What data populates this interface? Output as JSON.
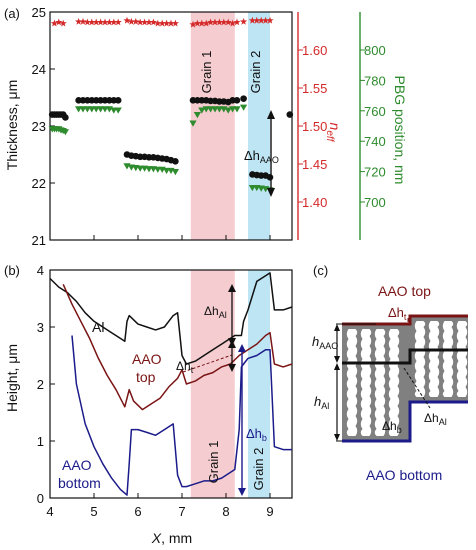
{
  "panels": {
    "a": "(a)",
    "b": "(b)",
    "c": "(c)"
  },
  "colors": {
    "black": "#111111",
    "red": "#d42a2a",
    "green": "#2e8b2e",
    "dark_red": "#7a1414",
    "blue": "#1b1b8a",
    "grain1_band": "#f2bcc0",
    "grain2_band": "#a8dcf0",
    "schematic_gray": "#808080",
    "axis_red": "#d42a2a",
    "axis_green": "#2e8b2e"
  },
  "chart_data": [
    {
      "id": "a",
      "type": "scatter",
      "xlim": [
        4,
        9.5
      ],
      "x_ticks": [
        4,
        5,
        6,
        7,
        8,
        9
      ],
      "shaded_regions": [
        {
          "label": "Grain 1",
          "x": [
            7.2,
            8.2
          ]
        },
        {
          "label": "Grain 2",
          "x": [
            8.5,
            9.0
          ]
        }
      ],
      "axes": {
        "left": {
          "label": "Thickness, μm",
          "lim": [
            21,
            25
          ],
          "ticks": [
            21,
            22,
            23,
            24,
            25
          ]
        },
        "right1": {
          "label_main": "n",
          "label_sub": "eff",
          "lim": [
            1.35,
            1.65
          ],
          "ticks": [
            1.4,
            1.45,
            1.5,
            1.55,
            1.6
          ]
        },
        "right2": {
          "label": "PBG position, nm",
          "lim": [
            675,
            825
          ],
          "ticks": [
            700,
            720,
            740,
            760,
            780,
            800
          ]
        }
      },
      "series": [
        {
          "marker": "circle",
          "color": "#111111",
          "axis": "left",
          "points": [
            [
              4.05,
              23.2
            ],
            [
              4.1,
              23.2
            ],
            [
              4.15,
              23.2
            ],
            [
              4.2,
              23.2
            ],
            [
              4.25,
              23.2
            ],
            [
              4.3,
              23.2
            ],
            [
              4.35,
              23.15
            ],
            [
              4.65,
              23.45
            ],
            [
              4.75,
              23.45
            ],
            [
              4.85,
              23.45
            ],
            [
              4.95,
              23.45
            ],
            [
              5.05,
              23.45
            ],
            [
              5.15,
              23.45
            ],
            [
              5.25,
              23.45
            ],
            [
              5.35,
              23.45
            ],
            [
              5.45,
              23.45
            ],
            [
              5.55,
              23.45
            ],
            [
              5.75,
              22.5
            ],
            [
              5.85,
              22.48
            ],
            [
              5.95,
              22.47
            ],
            [
              6.05,
              22.46
            ],
            [
              6.15,
              22.46
            ],
            [
              6.25,
              22.45
            ],
            [
              6.35,
              22.45
            ],
            [
              6.45,
              22.44
            ],
            [
              6.55,
              22.43
            ],
            [
              6.65,
              22.42
            ],
            [
              6.75,
              22.4
            ],
            [
              6.85,
              22.38
            ],
            [
              7.25,
              23.45
            ],
            [
              7.35,
              23.45
            ],
            [
              7.45,
              23.45
            ],
            [
              7.55,
              23.45
            ],
            [
              7.65,
              23.44
            ],
            [
              7.75,
              23.44
            ],
            [
              7.85,
              23.43
            ],
            [
              7.95,
              23.43
            ],
            [
              8.05,
              23.42
            ],
            [
              8.15,
              23.45
            ],
            [
              8.25,
              23.45
            ],
            [
              8.4,
              23.48
            ],
            [
              8.6,
              22.15
            ],
            [
              8.7,
              22.14
            ],
            [
              8.8,
              22.13
            ],
            [
              8.9,
              22.13
            ],
            [
              9.0,
              22.1
            ],
            [
              9.45,
              23.2
            ]
          ]
        },
        {
          "marker": "triangle-down",
          "color": "#2e8b2e",
          "axis": "left",
          "points": [
            [
              4.05,
              22.95
            ],
            [
              4.1,
              22.95
            ],
            [
              4.15,
              22.95
            ],
            [
              4.2,
              22.95
            ],
            [
              4.25,
              22.93
            ],
            [
              4.3,
              22.92
            ],
            [
              4.35,
              22.9
            ],
            [
              4.65,
              23.3
            ],
            [
              4.75,
              23.3
            ],
            [
              4.85,
              23.3
            ],
            [
              4.95,
              23.3
            ],
            [
              5.05,
              23.3
            ],
            [
              5.15,
              23.3
            ],
            [
              5.25,
              23.3
            ],
            [
              5.35,
              23.3
            ],
            [
              5.45,
              23.28
            ],
            [
              5.55,
              23.28
            ],
            [
              5.75,
              22.3
            ],
            [
              5.85,
              22.28
            ],
            [
              5.95,
              22.27
            ],
            [
              6.05,
              22.26
            ],
            [
              6.15,
              22.26
            ],
            [
              6.25,
              22.25
            ],
            [
              6.35,
              22.25
            ],
            [
              6.45,
              22.24
            ],
            [
              6.55,
              22.24
            ],
            [
              6.65,
              22.22
            ],
            [
              6.75,
              22.22
            ],
            [
              6.85,
              22.2
            ],
            [
              7.25,
              23.05
            ],
            [
              7.35,
              23.2
            ],
            [
              7.45,
              23.28
            ],
            [
              7.55,
              23.3
            ],
            [
              7.65,
              23.3
            ],
            [
              7.75,
              23.3
            ],
            [
              7.85,
              23.3
            ],
            [
              7.95,
              23.3
            ],
            [
              8.05,
              23.28
            ],
            [
              8.15,
              23.3
            ],
            [
              8.25,
              23.3
            ],
            [
              8.4,
              23.33
            ],
            [
              8.6,
              21.92
            ],
            [
              8.7,
              21.92
            ],
            [
              8.8,
              21.91
            ],
            [
              8.9,
              21.9
            ],
            [
              9.0,
              21.88
            ]
          ]
        },
        {
          "marker": "star",
          "color": "#d42a2a",
          "axis": "left",
          "points": [
            [
              4.1,
              24.8
            ],
            [
              4.2,
              24.82
            ],
            [
              4.3,
              24.8
            ],
            [
              4.65,
              24.83
            ],
            [
              4.75,
              24.83
            ],
            [
              4.85,
              24.82
            ],
            [
              4.95,
              24.82
            ],
            [
              5.05,
              24.82
            ],
            [
              5.15,
              24.82
            ],
            [
              5.25,
              24.82
            ],
            [
              5.35,
              24.82
            ],
            [
              5.45,
              24.82
            ],
            [
              5.55,
              24.82
            ],
            [
              5.75,
              24.85
            ],
            [
              5.85,
              24.83
            ],
            [
              5.95,
              24.83
            ],
            [
              6.05,
              24.82
            ],
            [
              6.15,
              24.82
            ],
            [
              6.25,
              24.82
            ],
            [
              6.35,
              24.82
            ],
            [
              6.45,
              24.8
            ],
            [
              6.55,
              24.8
            ],
            [
              6.65,
              24.8
            ],
            [
              6.75,
              24.8
            ],
            [
              6.85,
              24.8
            ],
            [
              7.25,
              24.78
            ],
            [
              7.35,
              24.8
            ],
            [
              7.45,
              24.8
            ],
            [
              7.55,
              24.8
            ],
            [
              7.65,
              24.82
            ],
            [
              7.75,
              24.82
            ],
            [
              7.85,
              24.82
            ],
            [
              7.95,
              24.82
            ],
            [
              8.05,
              24.82
            ],
            [
              8.15,
              24.8
            ],
            [
              8.25,
              24.82
            ],
            [
              8.4,
              24.83
            ],
            [
              8.6,
              24.85
            ],
            [
              8.7,
              24.85
            ],
            [
              8.8,
              24.85
            ],
            [
              8.9,
              24.85
            ],
            [
              9.0,
              24.85
            ]
          ]
        }
      ],
      "annotations": [
        {
          "text_main": "Δh",
          "text_sub": "AAO",
          "arrow_x": 8.38,
          "arrow_y": [
            23.42,
            22.17
          ],
          "x": 8.22,
          "y": 22.75
        }
      ]
    },
    {
      "id": "b",
      "type": "line",
      "xlabel": "X, mm",
      "ylabel": "Height, μm",
      "xlim": [
        4,
        9.5
      ],
      "ylim": [
        0,
        4
      ],
      "x_ticks": [
        4,
        5,
        6,
        7,
        8,
        9
      ],
      "x_tick_labels": [
        "4",
        "5",
        "6",
        "7",
        "8",
        "9"
      ],
      "y_ticks": [
        0,
        1,
        2,
        3,
        4
      ],
      "shaded_regions": [
        {
          "label": "Grain 1",
          "x": [
            7.2,
            8.2
          ]
        },
        {
          "label": "Grain 2",
          "x": [
            8.5,
            9.0
          ]
        }
      ],
      "series": [
        {
          "name": "Al",
          "color": "#111111",
          "x": [
            4.0,
            4.2,
            4.4,
            4.6,
            4.8,
            5.0,
            5.2,
            5.4,
            5.6,
            5.7,
            5.75,
            5.8,
            6.0,
            6.2,
            6.4,
            6.6,
            6.8,
            6.9,
            7.0,
            7.1,
            7.3,
            7.5,
            7.7,
            7.9,
            8.1,
            8.2,
            8.35,
            8.4,
            8.5,
            8.7,
            8.9,
            9.0,
            9.1,
            9.3,
            9.5
          ],
          "y": [
            3.85,
            3.7,
            3.6,
            3.45,
            3.25,
            3.1,
            3.0,
            2.9,
            2.8,
            2.75,
            3.1,
            3.2,
            3.05,
            3.0,
            2.95,
            3.0,
            3.2,
            3.25,
            2.5,
            2.35,
            2.4,
            2.5,
            2.6,
            2.7,
            2.8,
            2.85,
            2.85,
            3.1,
            3.3,
            3.8,
            3.9,
            3.95,
            3.3,
            3.3,
            3.35
          ]
        },
        {
          "name": "AAO top",
          "color": "#7a1414",
          "x": [
            4.3,
            4.5,
            4.7,
            4.9,
            5.1,
            5.3,
            5.5,
            5.7,
            5.8,
            5.9,
            6.1,
            6.3,
            6.5,
            6.7,
            6.9,
            7.0,
            7.1,
            7.3,
            7.5,
            7.7,
            7.9,
            8.1,
            8.3,
            8.5,
            8.7,
            8.9,
            9.0,
            9.1,
            9.3,
            9.5
          ],
          "y": [
            3.75,
            3.4,
            3.1,
            2.8,
            2.45,
            2.15,
            1.9,
            1.6,
            1.9,
            1.7,
            1.55,
            1.65,
            1.75,
            1.95,
            2.1,
            2.25,
            2.0,
            2.05,
            2.15,
            2.2,
            2.3,
            2.35,
            2.5,
            2.6,
            2.7,
            2.85,
            2.9,
            2.35,
            2.3,
            2.35
          ]
        },
        {
          "name": "AAO bottom",
          "color": "#1b1b8a",
          "x": [
            4.5,
            4.6,
            4.8,
            5.0,
            5.2,
            5.4,
            5.6,
            5.75,
            5.8,
            5.85,
            6.0,
            6.2,
            6.4,
            6.6,
            6.8,
            6.9,
            7.0,
            7.1,
            7.3,
            7.5,
            7.7,
            7.9,
            8.1,
            8.2,
            8.3,
            8.35,
            8.4,
            8.5,
            8.7,
            8.9,
            9.0,
            9.1,
            9.3,
            9.5
          ],
          "y": [
            2.85,
            2.0,
            1.3,
            0.9,
            0.6,
            0.35,
            0.15,
            0.05,
            0.6,
            1.2,
            1.2,
            1.15,
            1.1,
            1.2,
            1.3,
            0.4,
            0.2,
            0.2,
            0.25,
            0.3,
            0.3,
            0.35,
            0.45,
            0.5,
            1.2,
            2.3,
            2.35,
            2.45,
            2.5,
            2.6,
            2.6,
            0.9,
            0.85,
            0.85
          ]
        }
      ],
      "labels": {
        "al": "Al",
        "aao_top_1": "AAO",
        "aao_top_2": "top",
        "aao_bottom_1": "AAO",
        "aao_bottom_2": "bottom",
        "grain1": "Grain 1",
        "grain2": "Grain 2",
        "dh_al_main": "Δh",
        "dh_al_sub": "Al",
        "dh_t_main": "Δh",
        "dh_t_sub": "t",
        "dh_b_main": "Δh",
        "dh_b_sub": "b"
      }
    },
    {
      "id": "c",
      "type": "diagram",
      "labels": {
        "aao_top": "AAO top",
        "aao_bottom": "AAO bottom",
        "dh_t_main": "Δh",
        "dh_t_sub": "t",
        "h_aao_main": "h",
        "h_aao_sub": "AAO",
        "h_al_main": "h",
        "h_al_sub": "Al",
        "dh_b_main": "Δh",
        "dh_b_sub": "b",
        "dh_al_main": "Δh",
        "dh_al_sub": "Al"
      }
    }
  ]
}
